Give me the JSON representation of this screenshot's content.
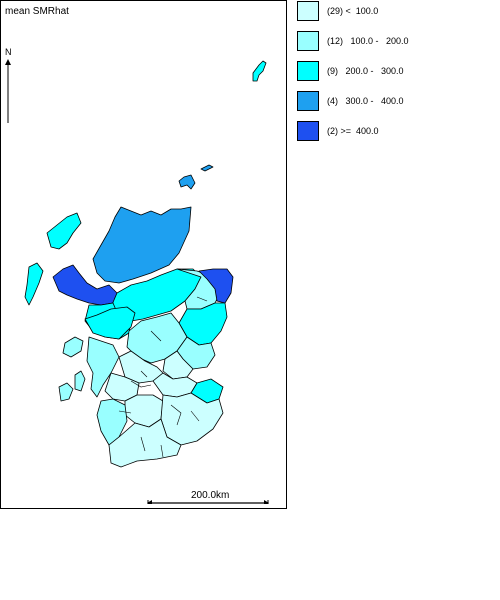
{
  "map": {
    "title": "mean SMRhat",
    "north_label": "N",
    "scale_label": "200.0km"
  },
  "legend": {
    "items": [
      {
        "label": "(29) <  100.0",
        "color": "#ccffff"
      },
      {
        "label": "(12)   100.0 -   200.0",
        "color": "#99ffff"
      },
      {
        "label": "(9)   200.0 -   300.0",
        "color": "#00ffff"
      },
      {
        "label": "(4)   300.0 -   400.0",
        "color": "#1ea0f0"
      },
      {
        "label": "(2) >=  400.0",
        "color": "#1e50f0"
      }
    ]
  }
}
